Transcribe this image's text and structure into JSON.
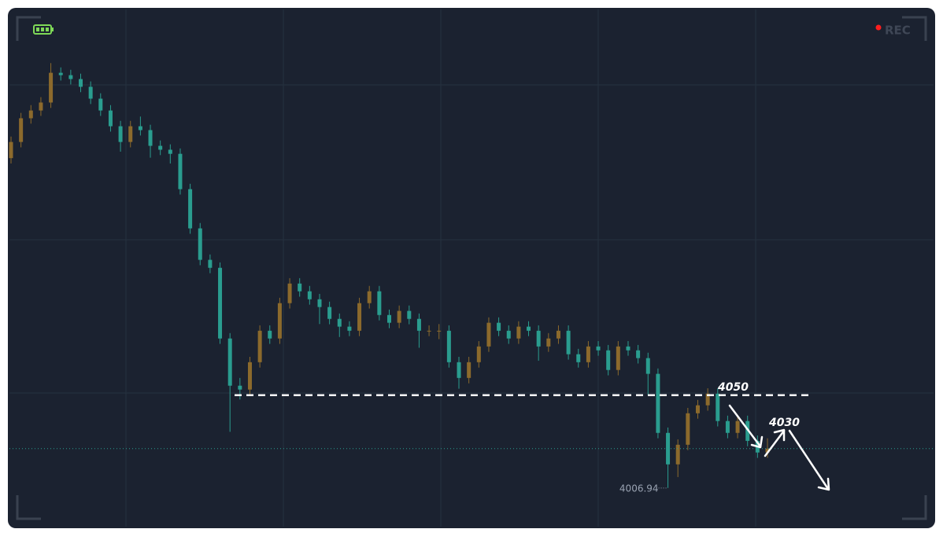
{
  "chart_data": {
    "type": "candlestick",
    "up_color": "#8c6a2c",
    "down_color": "#2a9d8f",
    "ylim": [
      3989,
      4229
    ],
    "resistance": 4050,
    "target": 4030,
    "rec_label": "REC",
    "series": [
      {
        "open": [
          4160.0,
          4167.5,
          4178.5,
          4182.1,
          4185.8,
          4199.6,
          4198.5,
          4196.7,
          4193.1,
          4187.6,
          4182.1,
          4174.8,
          4167.5,
          4174.8,
          4173.0,
          4165.7,
          4163.9,
          4162.0,
          4145.6,
          4127.4,
          4112.8,
          4109.1,
          4076.3,
          4054.4,
          4052.6,
          4065.3,
          4079.9,
          4076.3,
          4092.7,
          4101.8,
          4098.2,
          4094.5,
          4090.9,
          4085.4,
          4081.8,
          4079.9,
          4092.7,
          4098.2,
          4087.2,
          4083.6,
          4089.1,
          4085.4,
          4079.9,
          4079.9,
          4079.9,
          4065.3,
          4058.0,
          4065.3,
          4072.6,
          4083.6,
          4079.9,
          4076.3,
          4081.8,
          4079.9,
          4072.6,
          4076.3,
          4079.9,
          4069.0,
          4065.3,
          4072.6,
          4070.8,
          4061.7,
          4072.6,
          4070.8,
          4067.2,
          4059.9,
          4032.5,
          4017.9,
          4027.0,
          4041.6,
          4045.3,
          4050.7,
          4038.0,
          4032.5,
          4038.0,
          4028.8,
          4023.4
        ],
        "high": [
          4170.0,
          4181.0,
          4184.6,
          4188.3,
          4204.1,
          4202.1,
          4201.0,
          4199.2,
          4195.6,
          4190.1,
          4184.6,
          4177.3,
          4177.3,
          4179.3,
          4175.5,
          4168.2,
          4166.4,
          4164.5,
          4148.1,
          4129.9,
          4115.3,
          4111.6,
          4078.8,
          4058.0,
          4067.8,
          4082.4,
          4082.4,
          4095.2,
          4104.3,
          4104.3,
          4100.7,
          4097.0,
          4093.4,
          4087.9,
          4084.3,
          4095.2,
          4100.7,
          4100.7,
          4089.7,
          4091.6,
          4091.6,
          4087.9,
          4082.4,
          4083.0,
          4082.4,
          4067.8,
          4067.8,
          4075.1,
          4086.1,
          4086.1,
          4082.4,
          4084.3,
          4084.3,
          4082.4,
          4078.8,
          4082.4,
          4082.4,
          4071.5,
          4075.1,
          4075.1,
          4073.3,
          4075.1,
          4075.1,
          4073.3,
          4069.7,
          4062.4,
          4035.0,
          4029.5,
          4044.1,
          4047.8,
          4053.2,
          4053.2,
          4040.5,
          4040.5,
          4040.5,
          4031.3,
          4030.0
        ],
        "low": [
          4157.5,
          4165.0,
          4176.0,
          4179.6,
          4183.3,
          4196.0,
          4194.2,
          4190.6,
          4185.1,
          4179.6,
          4172.3,
          4163.0,
          4165.0,
          4170.5,
          4160.2,
          4161.4,
          4157.5,
          4143.1,
          4124.9,
          4110.3,
          4106.6,
          4073.8,
          4033.0,
          4048.0,
          4050.1,
          4062.8,
          4073.8,
          4073.8,
          4090.2,
          4095.7,
          4092.0,
          4083.0,
          4082.9,
          4077.0,
          4077.4,
          4077.4,
          4090.2,
          4084.7,
          4081.1,
          4081.1,
          4082.9,
          4072.0,
          4077.4,
          4076.0,
          4062.8,
          4053.0,
          4055.5,
          4062.8,
          4070.1,
          4077.4,
          4073.8,
          4073.8,
          4077.4,
          4066.0,
          4070.1,
          4073.8,
          4066.5,
          4062.8,
          4062.8,
          4068.3,
          4059.2,
          4059.2,
          4068.3,
          4064.7,
          4050.0,
          4030.0,
          4006.94,
          4012.0,
          4024.5,
          4039.1,
          4042.8,
          4035.5,
          4030.0,
          4030.0,
          4026.3,
          4020.9,
          4020.9
        ],
        "close": [
          4167.5,
          4178.5,
          4182.1,
          4185.8,
          4199.6,
          4198.5,
          4196.7,
          4193.1,
          4187.6,
          4182.1,
          4174.8,
          4167.5,
          4174.8,
          4173.0,
          4165.7,
          4163.9,
          4162.0,
          4145.6,
          4127.4,
          4112.8,
          4109.1,
          4076.3,
          4054.4,
          4052.6,
          4065.3,
          4079.9,
          4076.3,
          4092.7,
          4101.8,
          4098.2,
          4094.5,
          4090.9,
          4085.4,
          4081.8,
          4079.9,
          4092.7,
          4098.2,
          4087.2,
          4083.6,
          4089.1,
          4085.4,
          4079.9,
          4079.9,
          4079.9,
          4065.3,
          4058.0,
          4065.3,
          4072.6,
          4083.6,
          4079.9,
          4076.3,
          4081.8,
          4079.9,
          4072.6,
          4076.3,
          4079.9,
          4069.0,
          4065.3,
          4072.6,
          4070.8,
          4061.7,
          4072.6,
          4070.8,
          4067.2,
          4059.9,
          4032.5,
          4017.9,
          4027.0,
          4041.6,
          4045.3,
          4050.7,
          4038.0,
          4032.5,
          4038.0,
          4028.8,
          4023.4,
          4025.2
        ]
      }
    ]
  }
}
